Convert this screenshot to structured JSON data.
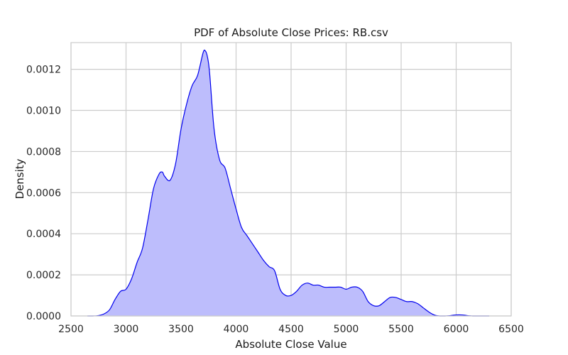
{
  "chart_data": {
    "type": "area",
    "title": "PDF of Absolute Close Prices: RB.csv",
    "xlabel": "Absolute Close Value",
    "ylabel": "Density",
    "xlim": [
      2500,
      6500
    ],
    "ylim": [
      0,
      0.00133
    ],
    "x_ticks": [
      2500,
      3000,
      3500,
      4000,
      4500,
      5000,
      5500,
      6000,
      6500
    ],
    "x_tick_labels": [
      "2500",
      "3000",
      "3500",
      "4000",
      "4500",
      "5000",
      "5500",
      "6000",
      "6500"
    ],
    "y_ticks": [
      0,
      0.0002,
      0.0004,
      0.0006,
      0.0008,
      0.001,
      0.0012
    ],
    "y_tick_labels": [
      "0.0000",
      "0.0002",
      "0.0004",
      "0.0006",
      "0.0008",
      "0.0010",
      "0.0012"
    ],
    "grid": true,
    "colors": {
      "line": "#0000ee",
      "fill": "#bdbdfc",
      "grid": "#cccccc"
    },
    "series": [
      {
        "x": [
          2650,
          2700,
          2750,
          2800,
          2850,
          2900,
          2950,
          3000,
          3050,
          3100,
          3150,
          3200,
          3250,
          3300,
          3330,
          3350,
          3400,
          3450,
          3500,
          3550,
          3600,
          3650,
          3700,
          3720,
          3740,
          3760,
          3800,
          3850,
          3900,
          3950,
          4000,
          4050,
          4100,
          4150,
          4200,
          4250,
          4300,
          4350,
          4400,
          4450,
          4500,
          4550,
          4600,
          4650,
          4700,
          4750,
          4800,
          4850,
          4900,
          4950,
          5000,
          5050,
          5100,
          5150,
          5200,
          5250,
          5300,
          5350,
          5400,
          5450,
          5500,
          5550,
          5600,
          5650,
          5700,
          5750,
          5800,
          5850,
          5900,
          5950,
          6000,
          6050,
          6100,
          6150,
          6200,
          6250,
          6300
        ],
        "y": [
          0.0,
          0.0,
          2e-06,
          1e-05,
          3e-05,
          8e-05,
          0.00012,
          0.00013,
          0.00018,
          0.00026,
          0.00033,
          0.00047,
          0.00062,
          0.00069,
          0.0007,
          0.00068,
          0.00066,
          0.00074,
          0.00091,
          0.00103,
          0.00112,
          0.00117,
          0.00128,
          0.00129,
          0.00126,
          0.00118,
          0.00091,
          0.00076,
          0.00072,
          0.00062,
          0.00052,
          0.00043,
          0.00039,
          0.00035,
          0.00031,
          0.00027,
          0.00024,
          0.00022,
          0.00013,
          0.0001,
          0.0001,
          0.00012,
          0.00015,
          0.00016,
          0.00015,
          0.00015,
          0.00014,
          0.00014,
          0.00014,
          0.00014,
          0.00013,
          0.00014,
          0.00014,
          0.00012,
          7e-05,
          5e-05,
          5e-05,
          7e-05,
          9e-05,
          9e-05,
          8e-05,
          7e-05,
          7e-05,
          6e-05,
          4e-05,
          2e-05,
          5e-06,
          0.0,
          0.0,
          2e-06,
          5e-06,
          5e-06,
          2e-06,
          0.0,
          0.0,
          0.0,
          0.0
        ]
      }
    ]
  }
}
